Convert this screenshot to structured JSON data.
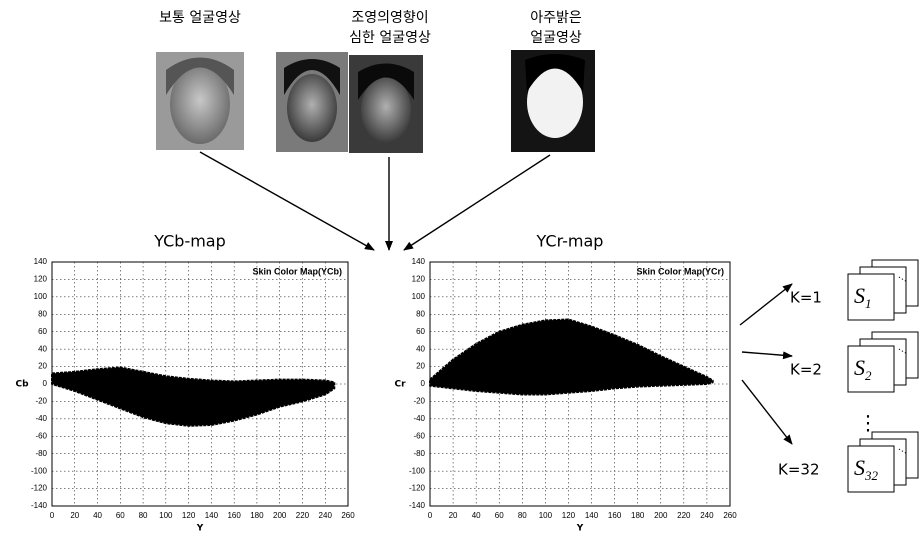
{
  "header": {
    "labels": [
      [
        "보통 얼굴영상"
      ],
      [
        "조영의영향이",
        "심한 얼굴영상"
      ],
      [
        "아주밝은",
        "얼굴영상"
      ]
    ]
  },
  "charts": [
    {
      "type": "band",
      "title": "YCb-map",
      "inner_title": "Skin Color Map(YCb)",
      "xlabel": "Y",
      "ylabel": "Cb",
      "xlim": [
        0,
        260
      ],
      "ylim": [
        -140,
        140
      ],
      "xticks": [
        0,
        20,
        40,
        60,
        80,
        100,
        120,
        140,
        160,
        180,
        200,
        220,
        240,
        260
      ],
      "yticks": [
        -140,
        -120,
        -100,
        -80,
        -60,
        -40,
        -20,
        0,
        20,
        40,
        60,
        80,
        100,
        120,
        140
      ],
      "grid": true,
      "color": "#000000",
      "x": [
        0,
        20,
        40,
        60,
        80,
        100,
        120,
        140,
        160,
        180,
        200,
        220,
        240,
        248
      ],
      "upper": [
        12,
        14,
        17,
        19,
        14,
        9,
        6,
        4,
        3,
        4,
        5,
        5,
        4,
        2
      ],
      "lower": [
        0,
        -8,
        -18,
        -28,
        -38,
        -45,
        -48,
        -47,
        -42,
        -35,
        -26,
        -20,
        -12,
        -5
      ]
    },
    {
      "type": "band",
      "title": "YCr-map",
      "inner_title": "Skin Color Map(YCr)",
      "xlabel": "Y",
      "ylabel": "Cr",
      "xlim": [
        0,
        260
      ],
      "ylim": [
        -140,
        140
      ],
      "xticks": [
        0,
        20,
        40,
        60,
        80,
        100,
        120,
        140,
        160,
        180,
        200,
        220,
        240,
        260
      ],
      "yticks": [
        -140,
        -120,
        -100,
        -80,
        -60,
        -40,
        -20,
        0,
        20,
        40,
        60,
        80,
        100,
        120,
        140
      ],
      "grid": true,
      "color": "#000000",
      "x": [
        0,
        20,
        40,
        60,
        80,
        100,
        120,
        140,
        160,
        180,
        200,
        220,
        240,
        245
      ],
      "upper": [
        5,
        28,
        46,
        60,
        68,
        73,
        74,
        66,
        56,
        45,
        32,
        20,
        8,
        4
      ],
      "lower": [
        -2,
        -5,
        -8,
        -10,
        -12,
        -12,
        -10,
        -8,
        -5,
        -3,
        -2,
        -1,
        0,
        2
      ]
    }
  ],
  "clusters": [
    {
      "label": "K=1",
      "name": "S",
      "index": "1"
    },
    {
      "label": "K=2",
      "name": "S",
      "index": "2"
    },
    {
      "label": "K=32",
      "name": "S",
      "index": "32"
    }
  ],
  "ellipsis": "⋮"
}
